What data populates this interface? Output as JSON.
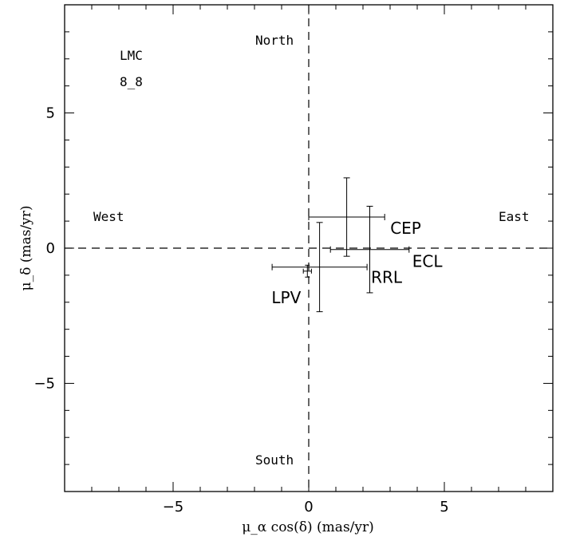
{
  "chart_data": {
    "type": "scatter",
    "xlabel": "μ_α cos(δ) (mas/yr)",
    "ylabel": "μ_δ (mas/yr)",
    "xlim": [
      -9.0,
      9.0
    ],
    "ylim": [
      -9.0,
      9.0
    ],
    "x_ticks": [
      -5,
      0,
      5
    ],
    "y_ticks": [
      -5,
      0,
      5
    ],
    "grid": false,
    "reference_lines": [
      {
        "axis": "x",
        "value": 0,
        "style": "dashed"
      },
      {
        "axis": "y",
        "value": 0,
        "style": "dashed"
      }
    ],
    "annotations": {
      "field_name": "LMC",
      "field_id": "8_8",
      "north": "North",
      "south": "South",
      "east": "East",
      "west": "West"
    },
    "points": [
      {
        "label": "CEP",
        "x": 1.4,
        "y": 1.15,
        "x_err": 1.4,
        "y_err": 1.45
      },
      {
        "label": "ECL",
        "x": 2.25,
        "y": -0.05,
        "x_err": 1.45,
        "y_err": 1.6
      },
      {
        "label": "RRL",
        "x": 0.4,
        "y": -0.7,
        "x_err": 1.75,
        "y_err": 1.65
      },
      {
        "label": "LPV",
        "x": -0.05,
        "y": -0.85,
        "x_err": 0.15,
        "y_err": 0.22
      }
    ]
  }
}
